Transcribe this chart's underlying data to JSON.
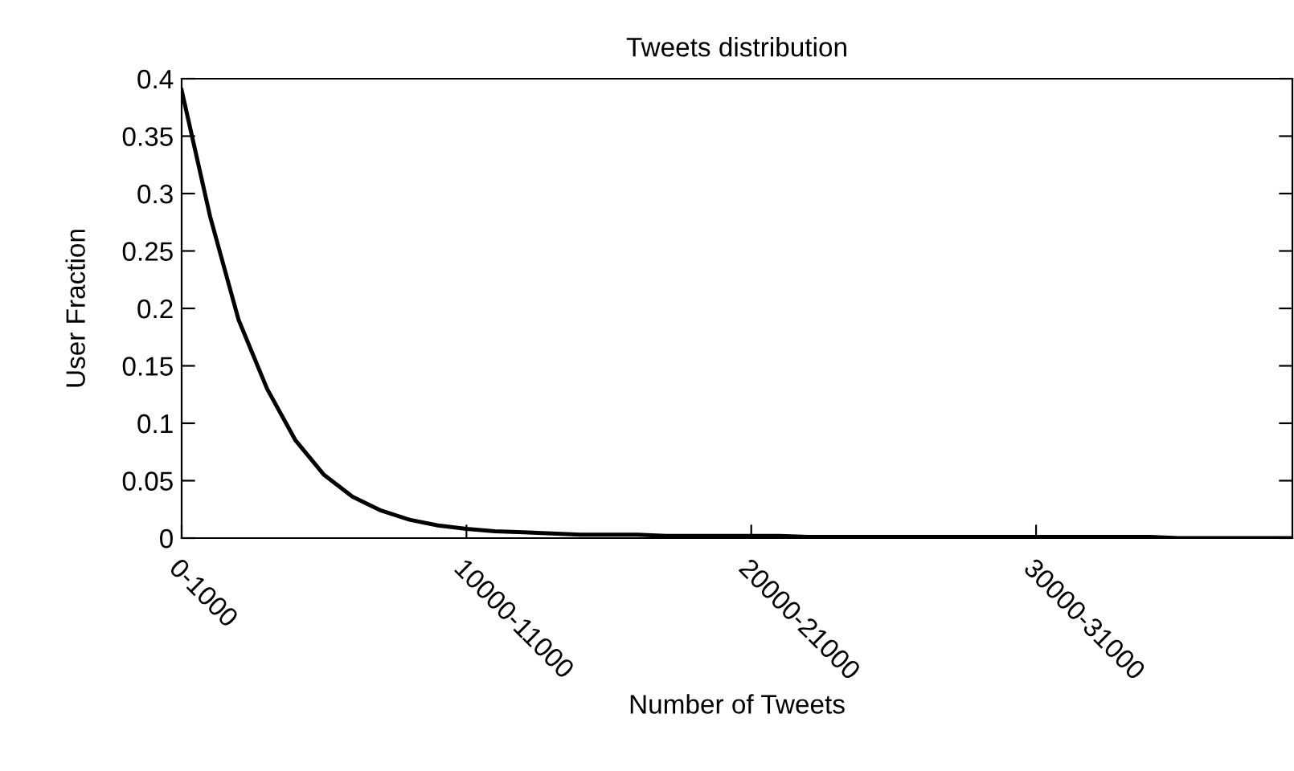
{
  "chart_data": {
    "type": "line",
    "title": "Tweets distribution",
    "xlabel": "Number of Tweets",
    "ylabel": "User Fraction",
    "categories": [
      "0-1000",
      null,
      null,
      null,
      null,
      null,
      null,
      null,
      null,
      null,
      "10000-11000",
      null,
      null,
      null,
      null,
      null,
      null,
      null,
      null,
      null,
      "20000-21000",
      null,
      null,
      null,
      null,
      null,
      null,
      null,
      null,
      null,
      "30000-31000",
      null,
      null,
      null,
      null,
      null,
      null,
      null,
      null,
      null
    ],
    "series": [
      {
        "color": "#000000",
        "values": [
          0.39,
          0.28,
          0.19,
          0.13,
          0.085,
          0.055,
          0.036,
          0.024,
          0.016,
          0.011,
          0.008,
          0.006,
          0.005,
          0.004,
          0.003,
          0.003,
          0.003,
          0.002,
          0.002,
          0.002,
          0.002,
          0.002,
          0.001,
          0.001,
          0.001,
          0.001,
          0.001,
          0.001,
          0.001,
          0.001,
          0.001,
          0.001,
          0.001,
          0.001,
          0.001,
          0.0,
          0.0,
          0.0,
          0.0,
          0.0
        ]
      }
    ],
    "ylim": [
      0,
      0.4
    ],
    "yticks": [
      0,
      0.05,
      0.1,
      0.15,
      0.2,
      0.25,
      0.3,
      0.35,
      0.4
    ],
    "grid": false,
    "legend": false,
    "marker": "none",
    "line_style": "solid"
  }
}
